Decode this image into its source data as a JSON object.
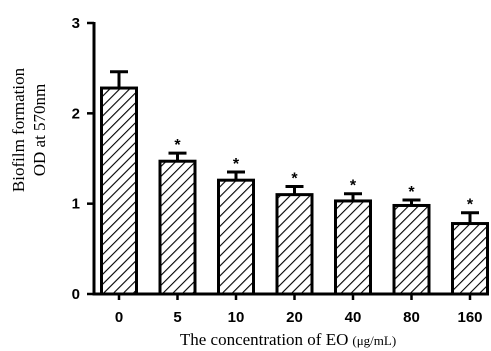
{
  "chart_data": {
    "type": "bar",
    "categories": [
      "0",
      "5",
      "10",
      "20",
      "40",
      "80",
      "160"
    ],
    "values": [
      2.28,
      1.47,
      1.26,
      1.1,
      1.03,
      0.98,
      0.78
    ],
    "errors": [
      0.18,
      0.09,
      0.09,
      0.09,
      0.08,
      0.06,
      0.12
    ],
    "significance": [
      "",
      "*",
      "*",
      "*",
      "*",
      "*",
      "*"
    ],
    "xlabel": "The concentration of EO",
    "xlabel_unit": "(μg/mL)",
    "ylabel_line1": "Biofilm formation",
    "ylabel_line2": "OD at 570nm",
    "ylim": [
      0,
      3
    ],
    "yticks": [
      "0",
      "1",
      "2",
      "3"
    ],
    "bar_fill": "hatched",
    "grid": false,
    "legend": "none",
    "colors": {
      "bar_stroke": "#000000",
      "hatch": "#000000",
      "axis": "#000000"
    }
  }
}
